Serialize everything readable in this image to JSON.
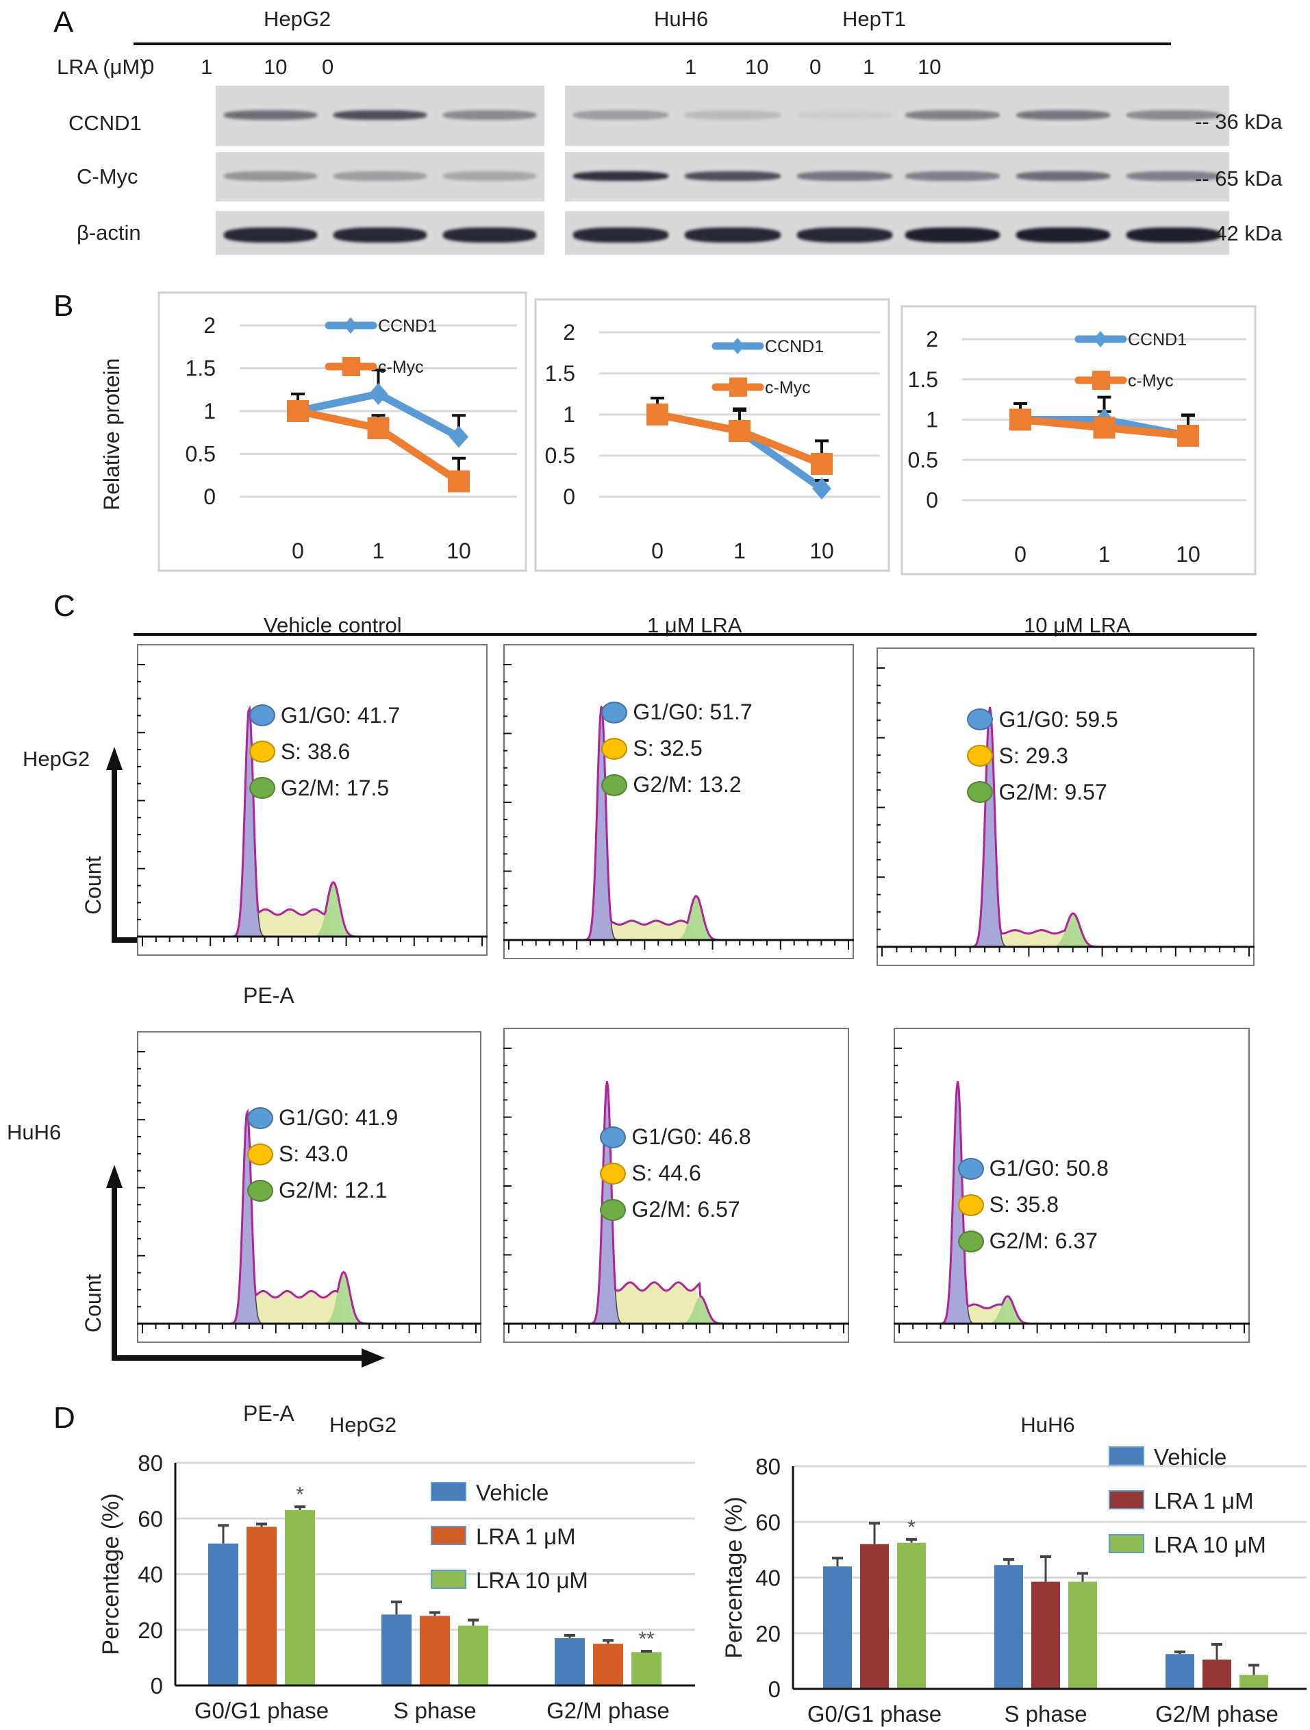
{
  "panel_letters": {
    "a": "A",
    "b": "B",
    "c": "C",
    "d": "D"
  },
  "panel_a": {
    "dose_label": "LRA (μM)",
    "cell_lines": [
      "HepG2",
      "HuH6",
      "HepT1"
    ],
    "doses": [
      "0",
      "1",
      "10"
    ],
    "proteins": [
      "CCND1",
      "C-Myc",
      "β-actin"
    ],
    "markers": [
      "-- 36 kDa",
      "-- 65 kDa",
      "-- 42 kDa"
    ]
  },
  "chart_data": [
    {
      "id": "B-HepG2",
      "type": "line",
      "title": "",
      "ylabel": "Relative protein",
      "xlabel": "",
      "categories": [
        "0",
        "1",
        "10"
      ],
      "ylim": [
        0,
        2
      ],
      "yticks": [
        "0",
        "0.5",
        "1",
        "1.5",
        "2"
      ],
      "grid": true,
      "legend": "top-right",
      "series": [
        {
          "name": "CCND1",
          "values": [
            1.0,
            1.2,
            0.7
          ],
          "err": [
            0.2,
            0.28,
            0.25
          ],
          "color": "#5b9bd5",
          "marker": "diamond"
        },
        {
          "name": "c-Myc",
          "values": [
            1.0,
            0.8,
            0.18
          ],
          "err": [
            0.1,
            0.15,
            0.27
          ],
          "color": "#ed7d31",
          "marker": "square"
        }
      ]
    },
    {
      "id": "B-HuH6",
      "type": "line",
      "title": "",
      "ylabel": "",
      "xlabel": "",
      "categories": [
        "0",
        "1",
        "10"
      ],
      "ylim": [
        0,
        2
      ],
      "yticks": [
        "0",
        "0.5",
        "1",
        "1.5",
        "2"
      ],
      "grid": true,
      "legend": "top-right",
      "series": [
        {
          "name": "CCND1",
          "values": [
            1.0,
            0.8,
            0.1
          ],
          "err": [
            0.2,
            0.27,
            0.1
          ],
          "color": "#5b9bd5",
          "marker": "diamond"
        },
        {
          "name": "c-Myc",
          "values": [
            1.0,
            0.8,
            0.4
          ],
          "err": [
            0.1,
            0.25,
            0.28
          ],
          "color": "#ed7d31",
          "marker": "square"
        }
      ]
    },
    {
      "id": "B-HepT1",
      "type": "line",
      "title": "",
      "ylabel": "",
      "xlabel": "",
      "categories": [
        "0",
        "1",
        "10"
      ],
      "ylim": [
        0,
        2
      ],
      "yticks": [
        "0",
        "0.5",
        "1",
        "1.5",
        "2"
      ],
      "grid": true,
      "legend": "top-right",
      "series": [
        {
          "name": "CCND1",
          "values": [
            1.0,
            1.0,
            0.8
          ],
          "err": [
            0.2,
            0.28,
            0.26
          ],
          "color": "#5b9bd5",
          "marker": "diamond"
        },
        {
          "name": "c-Myc",
          "values": [
            1.0,
            0.9,
            0.8
          ],
          "err": [
            0.1,
            0.2,
            0.25
          ],
          "color": "#ed7d31",
          "marker": "square"
        }
      ]
    },
    {
      "id": "D-HepG2",
      "type": "bar",
      "title": "HepG2",
      "ylabel": "Percentage (%)",
      "xlabel": "",
      "categories": [
        "G0/G1 phase",
        "S phase",
        "G2/M phase"
      ],
      "ylim": [
        0,
        80
      ],
      "yticks": [
        "0",
        "20",
        "40",
        "60",
        "80"
      ],
      "grid": true,
      "legend": "top-right",
      "series": [
        {
          "name": "Vehicle",
          "values": [
            51,
            25.5,
            17
          ],
          "err": [
            6.5,
            4.5,
            1
          ],
          "color": "#4a7ebb"
        },
        {
          "name": "LRA 1 μM",
          "values": [
            57,
            25,
            15
          ],
          "err": [
            1,
            1.2,
            1.2
          ],
          "color": "#d35e25"
        },
        {
          "name": "LRA 10 μM",
          "values": [
            63,
            21.5,
            12
          ],
          "err": [
            1.2,
            2,
            0.3
          ],
          "color": "#8fbc52"
        }
      ],
      "annotations": [
        {
          "category": "G0/G1 phase",
          "series": "LRA 10 μM",
          "text": "*"
        },
        {
          "category": "G2/M phase",
          "series": "LRA 10 μM",
          "text": "**"
        }
      ]
    },
    {
      "id": "D-HuH6",
      "type": "bar",
      "title": "HuH6",
      "ylabel": "Percentage (%)",
      "xlabel": "",
      "categories": [
        "G0/G1 phase",
        "S phase",
        "G2/M phase"
      ],
      "ylim": [
        0,
        80
      ],
      "yticks": [
        "0",
        "20",
        "40",
        "60",
        "80"
      ],
      "grid": true,
      "legend": "top-right",
      "series": [
        {
          "name": "Vehicle",
          "values": [
            44,
            44.5,
            12.5
          ],
          "err": [
            3,
            2,
            0.8
          ],
          "color": "#4a7ebb"
        },
        {
          "name": "LRA 1 μM",
          "values": [
            52,
            38.5,
            10.5
          ],
          "err": [
            7.5,
            9,
            5.5
          ],
          "color": "#953735"
        },
        {
          "name": "LRA 10 μM",
          "values": [
            52.5,
            38.5,
            5
          ],
          "err": [
            1.2,
            3,
            3.5
          ],
          "color": "#8fbc52"
        }
      ],
      "annotations": [
        {
          "category": "G0/G1 phase",
          "series": "LRA 10 μM",
          "text": "*"
        }
      ]
    }
  ],
  "panel_c": {
    "conditions": [
      "Vehicle control",
      "1 μM LRA",
      "10 μM LRA"
    ],
    "rows": [
      {
        "cell_line": "HepG2",
        "y_axis": "Count",
        "x_axis": "PE-A",
        "plots": [
          {
            "g1": "G1/G0: 41.7",
            "s": "S: 38.6",
            "g2": "G2/M: 17.5"
          },
          {
            "g1": "G1/G0: 51.7",
            "s": "S: 32.5",
            "g2": "G2/M: 13.2"
          },
          {
            "g1": "G1/G0: 59.5",
            "s": "S: 29.3",
            "g2": "G2/M: 9.57"
          }
        ]
      },
      {
        "cell_line": "HuH6",
        "y_axis": "Count",
        "x_axis": "PE-A",
        "plots": [
          {
            "g1": "G1/G0: 41.9",
            "s": "S: 43.0",
            "g2": "G2/M: 12.1"
          },
          {
            "g1": "G1/G0: 46.8",
            "s": "S: 44.6",
            "g2": "G2/M: 6.57"
          },
          {
            "g1": "G1/G0: 50.8",
            "s": "S: 35.8",
            "g2": "G2/M: 6.37"
          }
        ]
      }
    ],
    "phase_colors": {
      "g1": "#5b9bd5",
      "s": "#ffc000",
      "g2": "#70ad47"
    }
  }
}
